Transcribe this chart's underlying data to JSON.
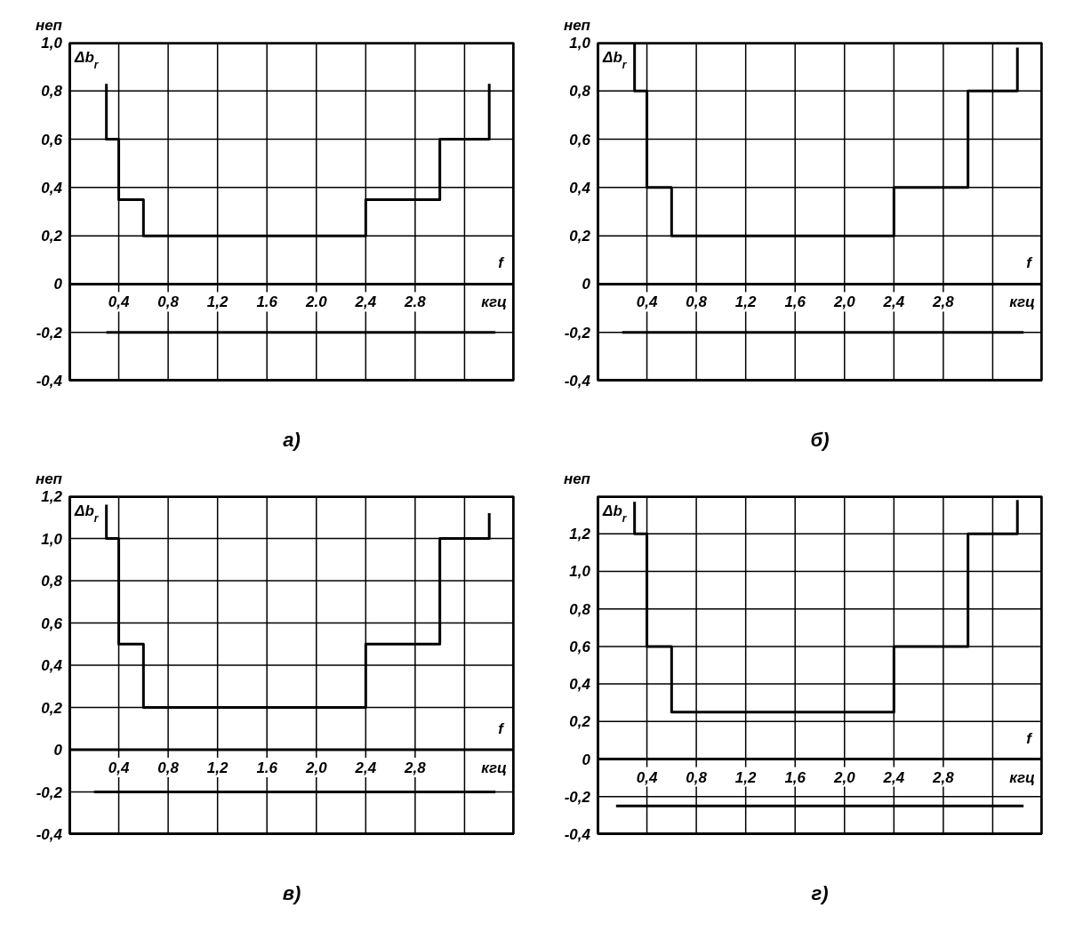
{
  "chart_data": [
    {
      "type": "line",
      "title": "а)",
      "ylabel": "нeп",
      "xlabel": "кгц",
      "annotations": [
        "Δb$_{r}$",
        "f"
      ],
      "grid": true,
      "ref_lines": [
        {
          "axis": "y",
          "value": 0
        }
      ],
      "xlim": [
        0,
        3.6
      ],
      "ylim": [
        -0.4,
        1.0
      ],
      "xticks": [
        {
          "value": 0.4,
          "label": "0,4"
        },
        {
          "value": 0.8,
          "label": "0,8"
        },
        {
          "value": 1.2,
          "label": "1,2"
        },
        {
          "value": 1.6,
          "label": "1.6"
        },
        {
          "value": 2.0,
          "label": "2.0"
        },
        {
          "value": 2.4,
          "label": "2,4"
        },
        {
          "value": 2.8,
          "label": "2.8"
        },
        {
          "value": 3.2,
          "label": null
        }
      ],
      "yticks": [
        {
          "value": -0.4,
          "label": "-0,4"
        },
        {
          "value": -0.2,
          "label": "-0,2"
        },
        {
          "value": 0,
          "label": "0"
        },
        {
          "value": 0.2,
          "label": "0,2"
        },
        {
          "value": 0.4,
          "label": "0,4"
        },
        {
          "value": 0.6,
          "label": "0,6"
        },
        {
          "value": 0.8,
          "label": "0,8"
        },
        {
          "value": 1.0,
          "label": "1,0"
        }
      ],
      "series": [
        {
          "color": "#000000",
          "x": [
            0.3,
            0.3,
            0.4,
            0.4,
            0.6,
            0.6,
            2.4,
            2.4,
            3.0,
            3.0,
            3.4,
            3.4
          ],
          "values": [
            0.83,
            0.6,
            0.6,
            0.35,
            0.35,
            0.2,
            0.2,
            0.35,
            0.35,
            0.6,
            0.6,
            0.83
          ]
        },
        {
          "color": "#000000",
          "x": [
            0.3,
            3.45
          ],
          "values": [
            -0.2,
            -0.2
          ]
        }
      ]
    },
    {
      "type": "line",
      "title": "б)",
      "ylabel": "нeп",
      "xlabel": "кгц",
      "annotations": [
        "Δb$_{r}$",
        "f"
      ],
      "grid": true,
      "ref_lines": [
        {
          "axis": "y",
          "value": 0
        }
      ],
      "xlim": [
        0,
        3.6
      ],
      "ylim": [
        -0.4,
        1.0
      ],
      "xticks": [
        {
          "value": 0.4,
          "label": "0,4"
        },
        {
          "value": 0.8,
          "label": "0,8"
        },
        {
          "value": 1.2,
          "label": "1,2"
        },
        {
          "value": 1.6,
          "label": "1,6"
        },
        {
          "value": 2.0,
          "label": "2,0"
        },
        {
          "value": 2.4,
          "label": "2,4"
        },
        {
          "value": 2.8,
          "label": "2,8"
        },
        {
          "value": 3.2,
          "label": null
        }
      ],
      "yticks": [
        {
          "value": -0.4,
          "label": "-0,4"
        },
        {
          "value": -0.2,
          "label": "-0,2"
        },
        {
          "value": 0,
          "label": "0"
        },
        {
          "value": 0.2,
          "label": "0,2"
        },
        {
          "value": 0.4,
          "label": "0,4"
        },
        {
          "value": 0.6,
          "label": "0,6"
        },
        {
          "value": 0.8,
          "label": "0,8"
        },
        {
          "value": 1.0,
          "label": "1,0"
        }
      ],
      "series": [
        {
          "color": "#000000",
          "x": [
            0.3,
            0.3,
            0.4,
            0.4,
            0.6,
            0.6,
            2.4,
            2.4,
            3.0,
            3.0,
            3.4,
            3.4
          ],
          "values": [
            1.0,
            0.8,
            0.8,
            0.4,
            0.4,
            0.2,
            0.2,
            0.4,
            0.4,
            0.8,
            0.8,
            0.98
          ]
        },
        {
          "color": "#000000",
          "x": [
            0.2,
            3.45
          ],
          "values": [
            -0.2,
            -0.2
          ]
        }
      ]
    },
    {
      "type": "line",
      "title": "в)",
      "ylabel": "нeп",
      "xlabel": "кгц",
      "annotations": [
        "Δb$_{r}$",
        "f"
      ],
      "grid": true,
      "ref_lines": [
        {
          "axis": "y",
          "value": 0
        }
      ],
      "xlim": [
        0,
        3.6
      ],
      "ylim": [
        -0.4,
        1.2
      ],
      "xticks": [
        {
          "value": 0.4,
          "label": "0,4"
        },
        {
          "value": 0.8,
          "label": "0,8"
        },
        {
          "value": 1.2,
          "label": "1,2"
        },
        {
          "value": 1.6,
          "label": "1.6"
        },
        {
          "value": 2.0,
          "label": "2,0"
        },
        {
          "value": 2.4,
          "label": "2,4"
        },
        {
          "value": 2.8,
          "label": "2,8"
        },
        {
          "value": 3.2,
          "label": null
        }
      ],
      "yticks": [
        {
          "value": -0.4,
          "label": "-0,4"
        },
        {
          "value": -0.2,
          "label": "-0,2"
        },
        {
          "value": 0,
          "label": "0"
        },
        {
          "value": 0.2,
          "label": "0,2"
        },
        {
          "value": 0.4,
          "label": "0,4"
        },
        {
          "value": 0.6,
          "label": "0,6"
        },
        {
          "value": 0.8,
          "label": "0,8"
        },
        {
          "value": 1.0,
          "label": "1,0"
        },
        {
          "value": 1.2,
          "label": "1,2"
        }
      ],
      "series": [
        {
          "color": "#000000",
          "x": [
            0.3,
            0.3,
            0.4,
            0.4,
            0.6,
            0.6,
            2.4,
            2.4,
            3.0,
            3.0,
            3.4,
            3.4
          ],
          "values": [
            1.16,
            1.0,
            1.0,
            0.5,
            0.5,
            0.2,
            0.2,
            0.5,
            0.5,
            1.0,
            1.0,
            1.12
          ]
        },
        {
          "color": "#000000",
          "x": [
            0.2,
            3.45
          ],
          "values": [
            -0.2,
            -0.2
          ]
        }
      ]
    },
    {
      "type": "line",
      "title": "г)",
      "ylabel": "нeп",
      "xlabel": "кгц",
      "annotations": [
        "Δb$_{r}$",
        "f"
      ],
      "grid": true,
      "ref_lines": [
        {
          "axis": "y",
          "value": 0
        }
      ],
      "xlim": [
        0,
        3.6
      ],
      "ylim": [
        -0.4,
        1.4
      ],
      "xticks": [
        {
          "value": 0.4,
          "label": "0,4"
        },
        {
          "value": 0.8,
          "label": "0,8"
        },
        {
          "value": 1.2,
          "label": "1,2"
        },
        {
          "value": 1.6,
          "label": "1,6"
        },
        {
          "value": 2.0,
          "label": "2,0"
        },
        {
          "value": 2.4,
          "label": "2,4"
        },
        {
          "value": 2.8,
          "label": "2,8"
        },
        {
          "value": 3.2,
          "label": null
        }
      ],
      "yticks": [
        {
          "value": -0.4,
          "label": "-0,4"
        },
        {
          "value": -0.2,
          "label": "-0,2"
        },
        {
          "value": 0,
          "label": "0"
        },
        {
          "value": 0.2,
          "label": "0,2"
        },
        {
          "value": 0.4,
          "label": "0,4"
        },
        {
          "value": 0.6,
          "label": "0,6"
        },
        {
          "value": 0.8,
          "label": "0,8"
        },
        {
          "value": 1.0,
          "label": "1,0"
        },
        {
          "value": 1.2,
          "label": "1,2"
        }
      ],
      "series": [
        {
          "color": "#000000",
          "x": [
            0.3,
            0.3,
            0.4,
            0.4,
            0.6,
            0.6,
            2.4,
            2.4,
            3.0,
            3.0,
            3.4,
            3.4
          ],
          "values": [
            1.37,
            1.2,
            1.2,
            0.6,
            0.6,
            0.25,
            0.25,
            0.6,
            0.6,
            1.2,
            1.2,
            1.38
          ]
        },
        {
          "color": "#000000",
          "x": [
            0.15,
            3.45
          ],
          "values": [
            -0.25,
            -0.25
          ]
        }
      ]
    }
  ]
}
